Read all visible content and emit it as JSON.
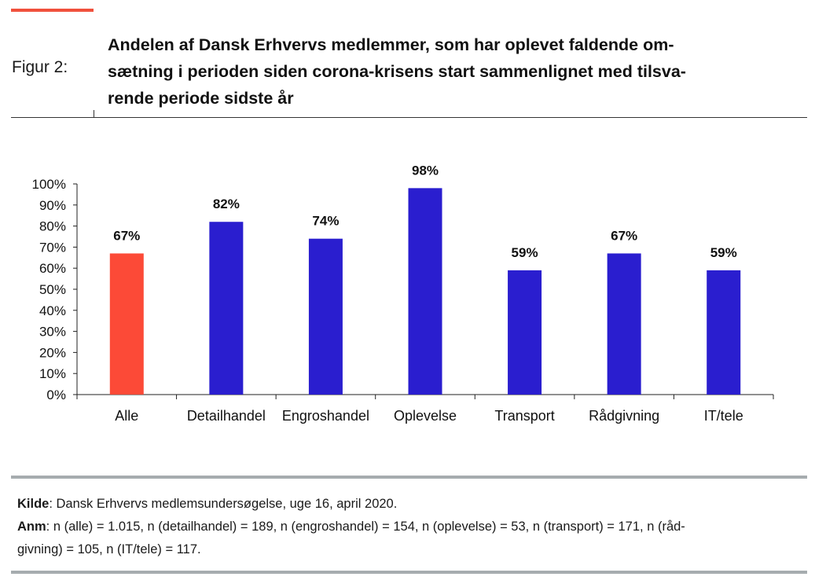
{
  "header": {
    "figure_label": "Figur 2:",
    "title_lines": [
      "Andelen af Dansk Erhvervs medlemmer, som har oplevet faldende om-",
      "sætning i perioden siden corona-krisens start sammenlignet med tilsva-",
      "rende periode sidste år"
    ]
  },
  "footer": {
    "source_label": "Kilde",
    "source_text": ": Dansk Erhvervs medlemsundersøgelse, uge 16, april 2020.",
    "note_label": "Anm",
    "note_text_line1": ": n (alle) = 1.015, n (detailhandel) = 189, n (engroshandel) = 154, n (oplevelse) = 53, n (transport) = 171, n (råd-",
    "note_text_line2": "givning) = 105, n (IT/tele) = 117."
  },
  "colors": {
    "accent": "#f0503c",
    "highlight_bar": "#fc4a37",
    "bar": "#2a1ecf",
    "rule": "#a6acaf"
  },
  "chart_data": {
    "type": "bar",
    "categories": [
      "Alle",
      "Detailhandel",
      "Engroshandel",
      "Oplevelse",
      "Transport",
      "Rådgivning",
      "IT/tele"
    ],
    "values": [
      67,
      82,
      74,
      98,
      59,
      67,
      59
    ],
    "data_labels": [
      "67%",
      "82%",
      "74%",
      "98%",
      "59%",
      "67%",
      "59%"
    ],
    "highlight_index": 0,
    "ylim": [
      0,
      100
    ],
    "yticks": [
      "0%",
      "10%",
      "20%",
      "30%",
      "40%",
      "50%",
      "60%",
      "70%",
      "80%",
      "90%",
      "100%"
    ],
    "grid": false,
    "legend": "none"
  }
}
